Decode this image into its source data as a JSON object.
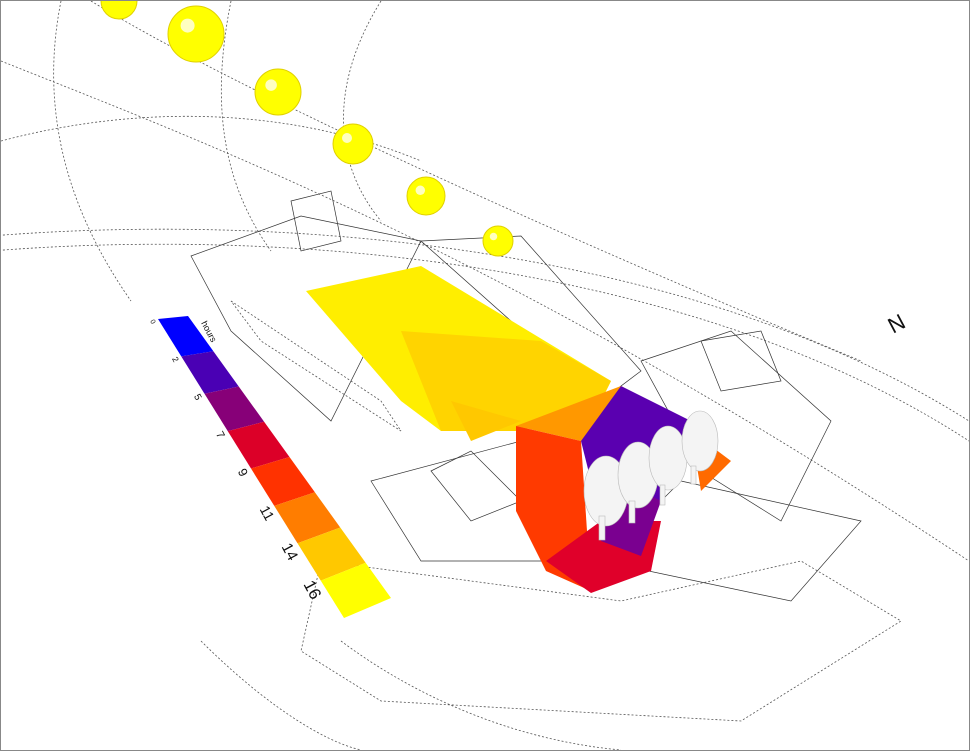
{
  "legend": {
    "unit": "hours",
    "labels": [
      "0",
      "2",
      "5",
      "7",
      "9",
      "11",
      "14",
      "16"
    ],
    "colors": [
      "#0000ff",
      "#4a00b4",
      "#870078",
      "#dc0028",
      "#ff3200",
      "#ff7d00",
      "#ffc800",
      "#ffff00"
    ]
  },
  "compass": {
    "north_label": "N"
  },
  "colors": {
    "sun": "#ffff00",
    "heatmap_high": "#ffee00",
    "heatmap_mid": "#ffc800"
  }
}
